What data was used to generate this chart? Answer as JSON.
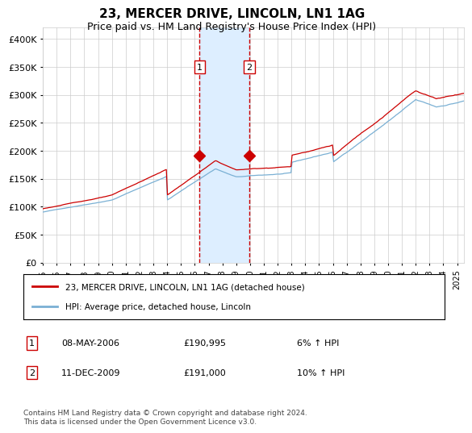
{
  "title": "23, MERCER DRIVE, LINCOLN, LN1 1AG",
  "subtitle": "Price paid vs. HM Land Registry's House Price Index (HPI)",
  "hpi_label": "HPI: Average price, detached house, Lincoln",
  "price_label": "23, MERCER DRIVE, LINCOLN, LN1 1AG (detached house)",
  "red_color": "#cc0000",
  "blue_color": "#7ab0d4",
  "shade_color": "#ddeeff",
  "grid_color": "#cccccc",
  "background_color": "#ffffff",
  "transaction1": {
    "date": "08-MAY-2006",
    "price": 190995,
    "pct": "6%",
    "dir": "↑"
  },
  "transaction2": {
    "date": "11-DEC-2009",
    "price": 191000,
    "pct": "10%",
    "dir": "↑"
  },
  "t1_x": 2006.35,
  "t2_x": 2009.95,
  "ylim": [
    0,
    420000
  ],
  "xlim_start": 1995.0,
  "xlim_end": 2025.5,
  "footnote": "Contains HM Land Registry data © Crown copyright and database right 2024.\nThis data is licensed under the Open Government Licence v3.0.",
  "yticks": [
    0,
    50000,
    100000,
    150000,
    200000,
    250000,
    300000,
    350000,
    400000
  ],
  "ytick_labels": [
    "£0",
    "£50K",
    "£100K",
    "£150K",
    "£200K",
    "£250K",
    "£300K",
    "£350K",
    "£400K"
  ],
  "xticks": [
    1995,
    1996,
    1997,
    1998,
    1999,
    2000,
    2001,
    2002,
    2003,
    2004,
    2005,
    2006,
    2007,
    2008,
    2009,
    2010,
    2011,
    2012,
    2013,
    2014,
    2015,
    2016,
    2017,
    2018,
    2019,
    2020,
    2021,
    2022,
    2023,
    2024,
    2025
  ]
}
